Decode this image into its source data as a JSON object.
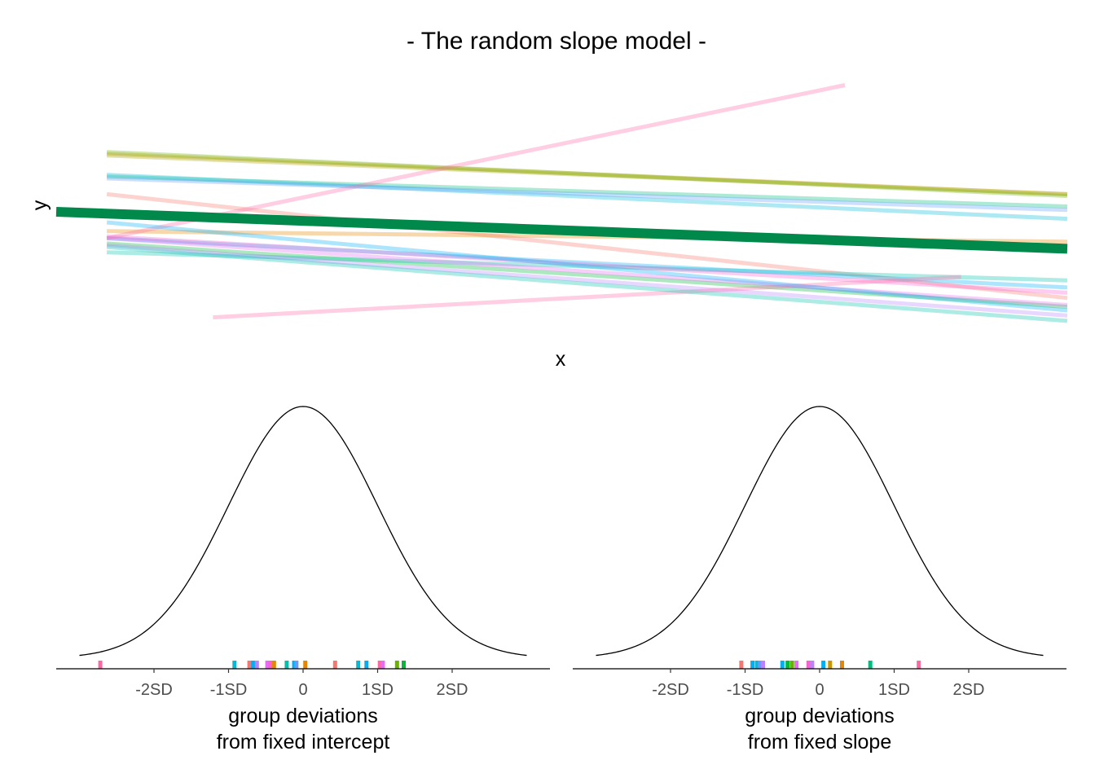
{
  "chart_data": [
    {
      "type": "line",
      "title": "- The random slope model -",
      "xlabel": "x",
      "ylabel": "y",
      "axes_visible": false,
      "fixed_line": {
        "name": "fixed effect",
        "color": "#00894A",
        "x": [
          0,
          1
        ],
        "y": [
          0.0,
          -0.42
        ]
      },
      "group_lines": [
        {
          "color": "#F8766D",
          "x": [
            0.05,
            1.0
          ],
          "y": [
            0.2,
            -0.98
          ]
        },
        {
          "color": "#E58700",
          "x": [
            0.05,
            1.0
          ],
          "y": [
            -0.22,
            -0.34
          ]
        },
        {
          "color": "#C99800",
          "x": [
            0.05,
            1.0
          ],
          "y": [
            0.66,
            0.2
          ]
        },
        {
          "color": "#A3A500",
          "x": [
            0.05,
            1.0
          ],
          "y": [
            0.64,
            0.2
          ]
        },
        {
          "color": "#6BB100",
          "x": [
            0.05,
            1.0
          ],
          "y": [
            0.68,
            0.18
          ]
        },
        {
          "color": "#00BA38",
          "x": [
            0.05,
            1.0
          ],
          "y": [
            -0.36,
            -1.08
          ]
        },
        {
          "color": "#00BF7D",
          "x": [
            0.05,
            1.0
          ],
          "y": [
            0.4,
            0.06
          ]
        },
        {
          "color": "#00C0AF",
          "x": [
            0.05,
            1.0
          ],
          "y": [
            -0.46,
            -0.78
          ]
        },
        {
          "color": "#00BCD8",
          "x": [
            0.05,
            1.0
          ],
          "y": [
            0.42,
            -0.08
          ]
        },
        {
          "color": "#00B0F6",
          "x": [
            0.05,
            1.0
          ],
          "y": [
            -0.3,
            -0.86
          ]
        },
        {
          "color": "#619CFF",
          "x": [
            0.05,
            1.0
          ],
          "y": [
            0.38,
            0.02
          ]
        },
        {
          "color": "#B983FF",
          "x": [
            0.05,
            1.0
          ],
          "y": [
            -0.38,
            -1.18
          ]
        },
        {
          "color": "#E76BF3",
          "x": [
            0.05,
            1.0
          ],
          "y": [
            -0.3,
            -1.06
          ]
        },
        {
          "color": "#FD61D1",
          "x": [
            0.05,
            1.0
          ],
          "y": [
            -0.28,
            -0.92
          ]
        },
        {
          "color": "#FF67A4",
          "x": [
            0.05,
            0.78
          ],
          "y": [
            -0.3,
            1.44
          ]
        },
        {
          "color": "#FF67A4",
          "x": [
            0.155,
            0.895
          ],
          "y": [
            -1.2,
            -0.74
          ]
        },
        {
          "color": "#00C0AF",
          "x": [
            0.05,
            1.0
          ],
          "y": [
            -0.4,
            -1.24
          ]
        },
        {
          "color": "#00B0F6",
          "x": [
            0.05,
            1.0
          ],
          "y": [
            -0.12,
            -1.12
          ]
        }
      ]
    },
    {
      "type": "density",
      "xlabel": "group deviations\nfrom fixed intercept",
      "tick_labels": [
        "-2SD",
        "-1SD",
        "0",
        "1SD",
        "2SD"
      ],
      "tick_values": [
        -2,
        -1,
        0,
        1,
        2
      ],
      "curve": "standard normal",
      "xlim": [
        -3.3,
        3.3
      ],
      "rug": [
        {
          "value": -2.72,
          "color": "#FF67A4"
        },
        {
          "value": -0.92,
          "color": "#00BCD8"
        },
        {
          "value": -0.72,
          "color": "#F8766D"
        },
        {
          "value": -0.67,
          "color": "#00B0F6"
        },
        {
          "value": -0.62,
          "color": "#B983FF"
        },
        {
          "value": -0.48,
          "color": "#E76BF3"
        },
        {
          "value": -0.44,
          "color": "#FD61D1"
        },
        {
          "value": -0.39,
          "color": "#E58700"
        },
        {
          "value": -0.22,
          "color": "#00C0AF"
        },
        {
          "value": -0.12,
          "color": "#00B0F6"
        },
        {
          "value": -0.09,
          "color": "#619CFF"
        },
        {
          "value": 0.03,
          "color": "#E58700"
        },
        {
          "value": 0.43,
          "color": "#F8766D"
        },
        {
          "value": 0.74,
          "color": "#00BCD8"
        },
        {
          "value": 0.85,
          "color": "#00B0F6"
        },
        {
          "value": 1.03,
          "color": "#FF67A4"
        },
        {
          "value": 1.07,
          "color": "#E76BF3"
        },
        {
          "value": 1.26,
          "color": "#6BB100"
        },
        {
          "value": 1.35,
          "color": "#00BA38"
        }
      ]
    },
    {
      "type": "density",
      "xlabel": "group deviations\nfrom fixed slope",
      "tick_labels": [
        "-2SD",
        "-1SD",
        "0",
        "1SD",
        "2SD"
      ],
      "tick_values": [
        -2,
        -1,
        0,
        1,
        2
      ],
      "curve": "standard normal",
      "xlim": [
        -3.3,
        3.3
      ],
      "rug": [
        {
          "value": -1.05,
          "color": "#F8766D"
        },
        {
          "value": -0.9,
          "color": "#00B0F6"
        },
        {
          "value": -0.84,
          "color": "#00BCD8"
        },
        {
          "value": -0.8,
          "color": "#619CFF"
        },
        {
          "value": -0.76,
          "color": "#B983FF"
        },
        {
          "value": -0.5,
          "color": "#00B0F6"
        },
        {
          "value": -0.43,
          "color": "#00BA38"
        },
        {
          "value": -0.37,
          "color": "#6BB100"
        },
        {
          "value": -0.31,
          "color": "#E76BF3"
        },
        {
          "value": -0.15,
          "color": "#FD61D1"
        },
        {
          "value": -0.1,
          "color": "#B983FF"
        },
        {
          "value": 0.05,
          "color": "#00B0F6"
        },
        {
          "value": 0.14,
          "color": "#C99800"
        },
        {
          "value": 0.3,
          "color": "#E58700"
        },
        {
          "value": 0.68,
          "color": "#00BF7D"
        },
        {
          "value": 1.33,
          "color": "#FF67A4"
        }
      ]
    }
  ]
}
